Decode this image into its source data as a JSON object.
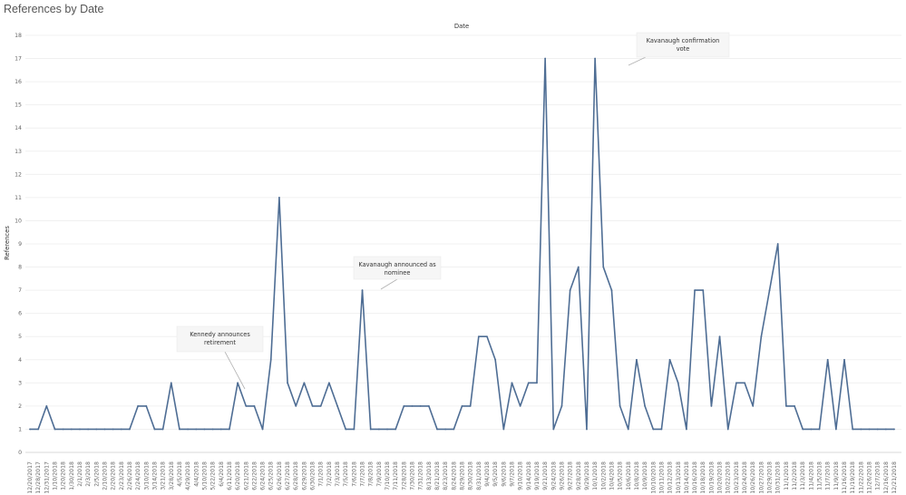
{
  "page": {
    "title": "References by Date"
  },
  "chart_data": {
    "type": "line",
    "xlabel": "Date",
    "ylabel": "References",
    "ylim": [
      0,
      18
    ],
    "yticks": [
      0,
      1,
      2,
      3,
      4,
      5,
      6,
      7,
      8,
      9,
      10,
      11,
      12,
      13,
      14,
      15,
      16,
      17,
      18
    ],
    "grid": true,
    "line_color": "#4e6d94",
    "x": [
      "12/20/2017",
      "12/28/2017",
      "12/31/2017",
      "1/10/2018",
      "1/20/2018",
      "1/30/2018",
      "2/1/2018",
      "2/3/2018",
      "2/5/2018",
      "2/10/2018",
      "2/20/2018",
      "2/23/2018",
      "2/26/2018",
      "2/24/2018",
      "3/10/2018",
      "3/14/2018",
      "3/21/2018",
      "3/28/2018",
      "4/5/2018",
      "4/29/2018",
      "4/4/2018",
      "5/10/2018",
      "5/22/2018",
      "6/4/2018",
      "6/11/2018",
      "6/20/2018",
      "6/21/2018",
      "6/22/2018",
      "6/24/2018",
      "6/25/2018",
      "6/26/2018",
      "6/27/2018",
      "6/28/2018",
      "6/29/2018",
      "6/30/2018",
      "7/1/2018",
      "7/2/2018",
      "7/3/2018",
      "7/5/2018",
      "7/6/2018",
      "7/7/2018",
      "7/8/2018",
      "7/9/2018",
      "7/10/2018",
      "7/11/2018",
      "7/28/2018",
      "7/30/2018",
      "7/31/2018",
      "8/13/2018",
      "8/21/2018",
      "8/23/2018",
      "8/24/2018",
      "8/29/2018",
      "8/30/2018",
      "8/31/2018",
      "9/4/2018",
      "9/5/2018",
      "9/6/2018",
      "9/7/2018",
      "9/10/2018",
      "9/14/2018",
      "9/19/2018",
      "9/21/2018",
      "9/24/2018",
      "9/26/2018",
      "9/27/2018",
      "9/28/2018",
      "9/29/2018",
      "10/1/2018",
      "10/2/2018",
      "10/4/2018",
      "10/5/2018",
      "10/6/2018",
      "10/8/2018",
      "10/9/2018",
      "10/10/2018",
      "10/11/2018",
      "10/12/2018",
      "10/13/2018",
      "10/14/2018",
      "10/16/2018",
      "10/18/2018",
      "10/19/2018",
      "10/20/2018",
      "10/22/2018",
      "10/23/2018",
      "10/24/2018",
      "10/26/2018",
      "10/27/2018",
      "10/29/2018",
      "10/31/2018",
      "11/1/2018",
      "11/2/2018",
      "11/3/2018",
      "11/4/2018",
      "11/5/2018",
      "11/7/2018",
      "11/9/2018",
      "11/16/2018",
      "11/19/2018",
      "11/22/2018",
      "11/26/2018",
      "12/7/2018",
      "12/16/2018",
      "12/21/2018"
    ],
    "series": [
      {
        "values": [
          1,
          1,
          2,
          1,
          1,
          1,
          1,
          1,
          1,
          1,
          1,
          1,
          1,
          2,
          2,
          1,
          1,
          3,
          1,
          1,
          1,
          1,
          1,
          1,
          1,
          3,
          2,
          2,
          1,
          4,
          11,
          3,
          2,
          3,
          2,
          2,
          3,
          2,
          1,
          1,
          7,
          1,
          1,
          1,
          1,
          2,
          2,
          2,
          2,
          1,
          1,
          1,
          2,
          2,
          5,
          5,
          4,
          1,
          3,
          2,
          3,
          3,
          17,
          1,
          2,
          7,
          8,
          1,
          17,
          8,
          7,
          2,
          1,
          4,
          2,
          1,
          1,
          4,
          3,
          1,
          7,
          7,
          2,
          5,
          1,
          3,
          3,
          2,
          5,
          7,
          9,
          2,
          2,
          1,
          1,
          1,
          4,
          1,
          4,
          1,
          1,
          1,
          1,
          1,
          1
        ]
      }
    ],
    "annotations": [
      {
        "lines": [
          "Kennedy announces",
          "retirement"
        ],
        "x": "6/20/2018"
      },
      {
        "lines": [
          "Kavanaugh announced as",
          "nominee"
        ],
        "x": "7/8/2018"
      },
      {
        "lines": [
          "Kavanaugh confirmation",
          "vote"
        ],
        "x": "10/5/2018"
      }
    ]
  }
}
